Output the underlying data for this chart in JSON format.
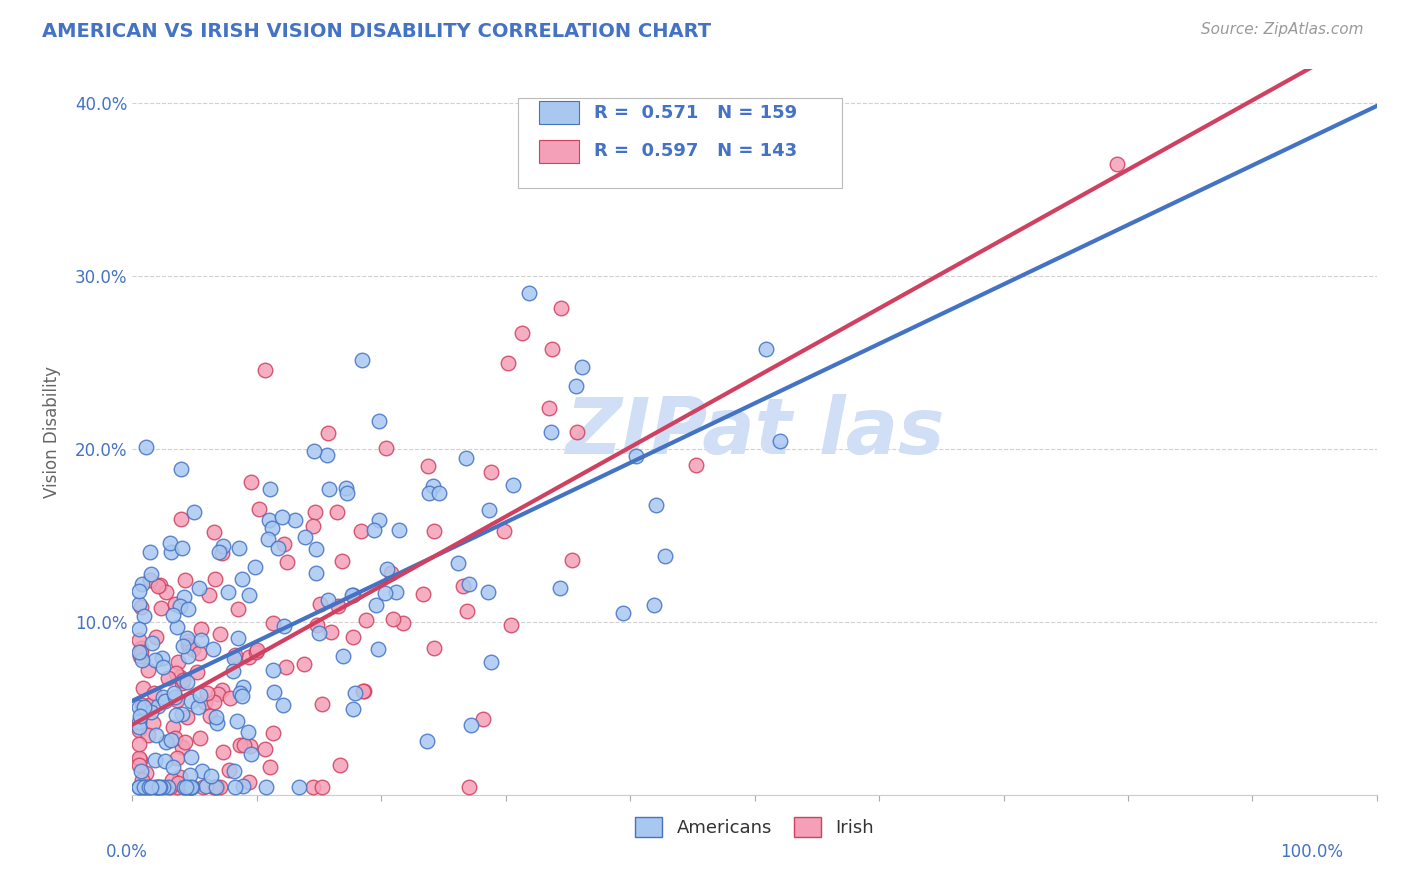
{
  "title": "AMERICAN VS IRISH VISION DISABILITY CORRELATION CHART",
  "source": "Source: ZipAtlas.com",
  "ylabel": "Vision Disability",
  "xlim": [
    0,
    1
  ],
  "ylim": [
    0,
    0.42
  ],
  "yticks": [
    0.0,
    0.1,
    0.2,
    0.3,
    0.4
  ],
  "ytick_labels": [
    "",
    "10.0%",
    "20.0%",
    "30.0%",
    "40.0%"
  ],
  "legend_r1": "0.571",
  "legend_n1": "159",
  "legend_r2": "0.597",
  "legend_n2": "143",
  "color_american": "#A8C8F0",
  "color_irish": "#F4A0B8",
  "color_american_line": "#4472C4",
  "color_irish_line": "#D04060",
  "color_title": "#4472C4",
  "color_legend_text": "#4472C4",
  "background_color": "#FFFFFF",
  "grid_color": "#CCCCCC",
  "watermark_color": "#D0DFF5"
}
